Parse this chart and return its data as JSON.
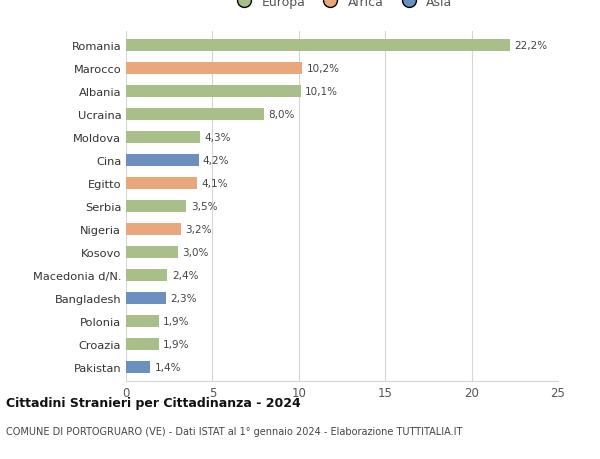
{
  "categories": [
    "Pakistan",
    "Croazia",
    "Polonia",
    "Bangladesh",
    "Macedonia d/N.",
    "Kosovo",
    "Nigeria",
    "Serbia",
    "Egitto",
    "Cina",
    "Moldova",
    "Ucraina",
    "Albania",
    "Marocco",
    "Romania"
  ],
  "values": [
    1.4,
    1.9,
    1.9,
    2.3,
    2.4,
    3.0,
    3.2,
    3.5,
    4.1,
    4.2,
    4.3,
    8.0,
    10.1,
    10.2,
    22.2
  ],
  "labels": [
    "1,4%",
    "1,9%",
    "1,9%",
    "2,3%",
    "2,4%",
    "3,0%",
    "3,2%",
    "3,5%",
    "4,1%",
    "4,2%",
    "4,3%",
    "8,0%",
    "10,1%",
    "10,2%",
    "22,2%"
  ],
  "colors": [
    "#6b8fbf",
    "#a8bf8a",
    "#a8bf8a",
    "#6b8fbf",
    "#a8bf8a",
    "#a8bf8a",
    "#e8a87c",
    "#a8bf8a",
    "#e8a87c",
    "#6b8fbf",
    "#a8bf8a",
    "#a8bf8a",
    "#a8bf8a",
    "#e8a87c",
    "#a8bf8a"
  ],
  "legend": [
    {
      "label": "Europa",
      "color": "#a8bf8a"
    },
    {
      "label": "Africa",
      "color": "#e8a87c"
    },
    {
      "label": "Asia",
      "color": "#6b8fbf"
    }
  ],
  "xlim": [
    0,
    25
  ],
  "xticks": [
    0,
    5,
    10,
    15,
    20,
    25
  ],
  "title": "Cittadini Stranieri per Cittadinanza - 2024",
  "subtitle": "COMUNE DI PORTOGRUARO (VE) - Dati ISTAT al 1° gennaio 2024 - Elaborazione TUTTITALIA.IT",
  "bg_color": "#ffffff",
  "grid_color": "#d5d5d5",
  "bar_height": 0.55
}
